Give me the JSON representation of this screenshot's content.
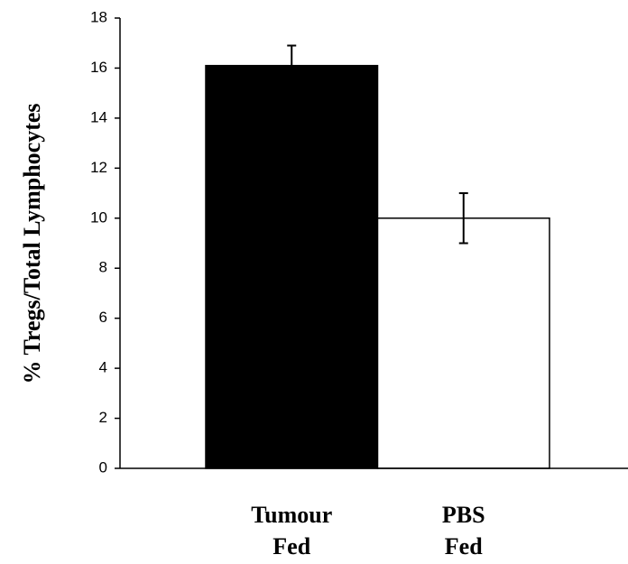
{
  "chart_data": {
    "type": "bar",
    "y_label": "% Tregs/Total Lymphocytes",
    "categories": [
      "Tumour Fed",
      "PBS Fed"
    ],
    "values": [
      16.1,
      10.0
    ],
    "errors": [
      0.8,
      1.0
    ],
    "colors": [
      "#000000",
      "#ffffff"
    ],
    "ylim": [
      0,
      18
    ],
    "yticks": [
      0,
      2,
      4,
      6,
      8,
      10,
      12,
      14,
      16,
      18
    ],
    "grid": false
  }
}
